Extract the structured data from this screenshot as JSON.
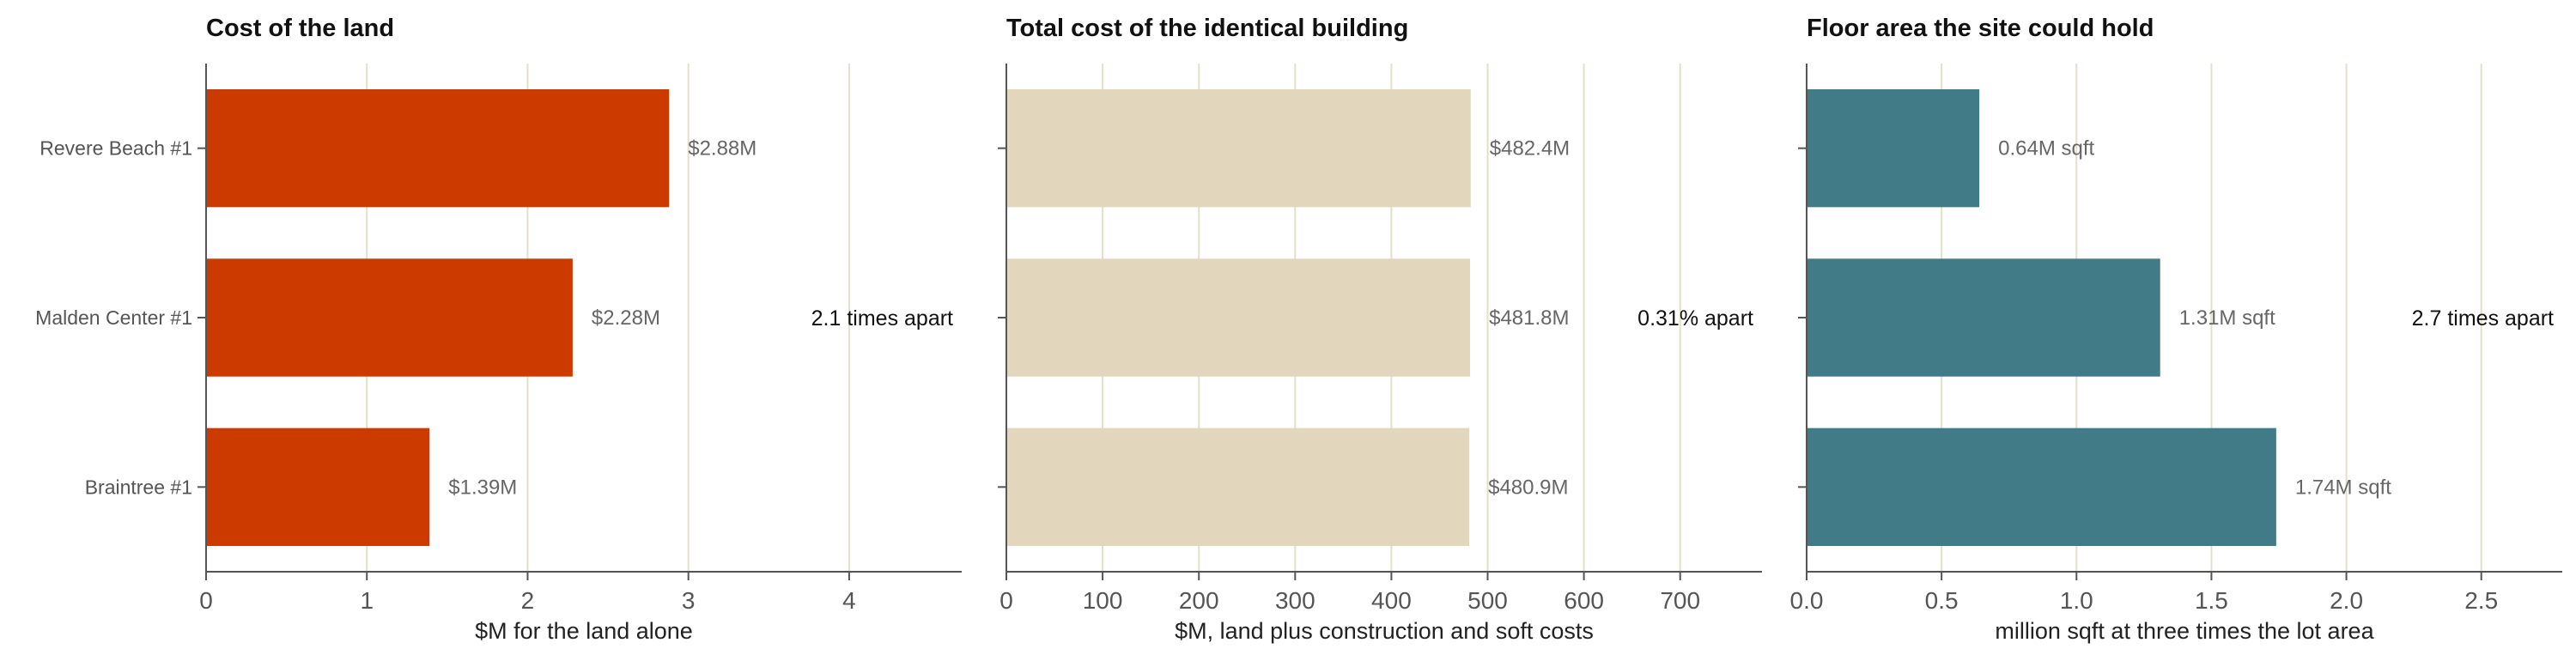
{
  "chart_data": [
    {
      "type": "bar",
      "orientation": "horizontal",
      "title": "Cost of the land",
      "xlabel": "$M for the land alone",
      "ylabel": "",
      "categories": [
        "Revere Beach #1",
        "Malden Center #1",
        "Braintree #1"
      ],
      "values": [
        2.88,
        2.28,
        1.39
      ],
      "value_labels": [
        "$2.88M",
        "$2.28M",
        "$1.39M"
      ],
      "xlim": [
        0,
        4.7
      ],
      "xticks": [
        0,
        1,
        2,
        3,
        4
      ],
      "xtick_labels": [
        "0",
        "1",
        "2",
        "3",
        "4"
      ],
      "grid": "vertical",
      "annotation": "2.1 times apart",
      "color": "#cc3a00",
      "show_category_labels": true
    },
    {
      "type": "bar",
      "orientation": "horizontal",
      "title": "Total cost of the identical building",
      "xlabel": "$M, land plus construction and soft costs",
      "ylabel": "",
      "categories": [
        "Revere Beach #1",
        "Malden Center #1",
        "Braintree #1"
      ],
      "values": [
        482.4,
        481.8,
        480.9
      ],
      "value_labels": [
        "$482.4M",
        "$481.8M",
        "$480.9M"
      ],
      "xlim": [
        0,
        785
      ],
      "xticks": [
        0,
        100,
        200,
        300,
        400,
        500,
        600,
        700
      ],
      "xtick_labels": [
        "0",
        "100",
        "200",
        "300",
        "400",
        "500",
        "600",
        "700"
      ],
      "grid": "vertical",
      "annotation": "0.31% apart",
      "color": "#e2d7bc",
      "show_category_labels": false
    },
    {
      "type": "bar",
      "orientation": "horizontal",
      "title": "Floor area the site could hold",
      "xlabel": "million sqft at three times the lot area",
      "ylabel": "",
      "categories": [
        "Revere Beach #1",
        "Malden Center #1",
        "Braintree #1"
      ],
      "values": [
        0.64,
        1.31,
        1.74
      ],
      "value_labels": [
        "0.64M sqft",
        "1.31M sqft",
        "1.74M sqft"
      ],
      "xlim": [
        0,
        2.8
      ],
      "xticks": [
        0,
        0.5,
        1.0,
        1.5,
        2.0,
        2.5
      ],
      "xtick_labels": [
        "0.0",
        "0.5",
        "1.0",
        "1.5",
        "2.0",
        "2.5"
      ],
      "grid": "vertical",
      "annotation": "2.7 times apart",
      "color": "#417b87",
      "show_category_labels": false
    }
  ]
}
